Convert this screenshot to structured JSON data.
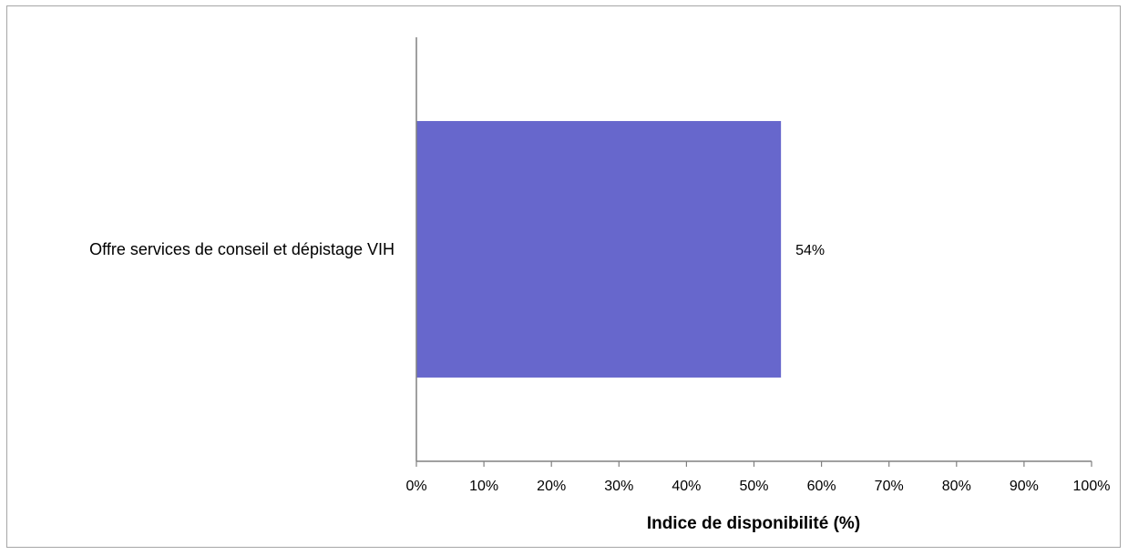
{
  "chart_data": {
    "type": "bar",
    "orientation": "horizontal",
    "title": "",
    "categories": [
      "Offre services de conseil et dépistage VIH"
    ],
    "series": [
      {
        "values": [
          54
        ],
        "data_labels": [
          "54%"
        ],
        "color": "#6767cc"
      }
    ],
    "xlabel": "Indice de disponibilité (%)",
    "ylabel": "",
    "xlim": [
      0,
      100
    ],
    "x_ticks": [
      0,
      10,
      20,
      30,
      40,
      50,
      60,
      70,
      80,
      90,
      100
    ],
    "x_tick_labels": [
      "0%",
      "10%",
      "20%",
      "30%",
      "40%",
      "50%",
      "60%",
      "70%",
      "80%",
      "90%",
      "100%"
    ],
    "grid": false,
    "legend": "none",
    "axis_color": "#808080",
    "frame_color": "#a6a6a6"
  }
}
